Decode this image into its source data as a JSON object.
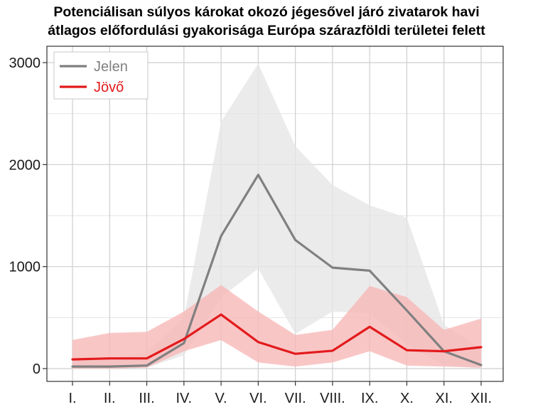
{
  "chart_data": {
    "type": "line",
    "title_line1": "Potenciálisan súlyos károkat okozó jégesővel járó zivatarok havi",
    "title_line2": "átlagos előfordulási gyakorisága Európa szárazföldi területei felett",
    "categories": [
      "I.",
      "II.",
      "III.",
      "IV.",
      "V.",
      "VI.",
      "VII.",
      "VIII.",
      "IX.",
      "X.",
      "XI.",
      "XII."
    ],
    "ylim": [
      0,
      3000
    ],
    "yticks": [
      0,
      1000,
      2000,
      3000
    ],
    "ytick_labels": [
      "0",
      "1000",
      "2000",
      "3000"
    ],
    "grid": true,
    "legend_position": "top-left",
    "series": [
      {
        "name": "Jelen",
        "color": "#808080",
        "band_color": "#e6e6e6",
        "values": [
          20,
          20,
          30,
          250,
          1300,
          1900,
          1260,
          990,
          960,
          570,
          170,
          35
        ],
        "lower": [
          0,
          0,
          10,
          130,
          700,
          980,
          340,
          560,
          540,
          240,
          30,
          0
        ],
        "upper": [
          100,
          100,
          150,
          500,
          2420,
          2990,
          2180,
          1800,
          1600,
          1480,
          430,
          200
        ]
      },
      {
        "name": "Jövő",
        "color": "#e31a1c",
        "band_color": "#f7b8b8",
        "values": [
          90,
          100,
          100,
          290,
          530,
          260,
          145,
          175,
          410,
          180,
          170,
          210
        ],
        "lower": [
          0,
          0,
          10,
          170,
          280,
          60,
          20,
          60,
          170,
          30,
          20,
          10
        ],
        "upper": [
          280,
          350,
          360,
          560,
          820,
          560,
          330,
          380,
          810,
          700,
          380,
          490
        ]
      }
    ]
  }
}
